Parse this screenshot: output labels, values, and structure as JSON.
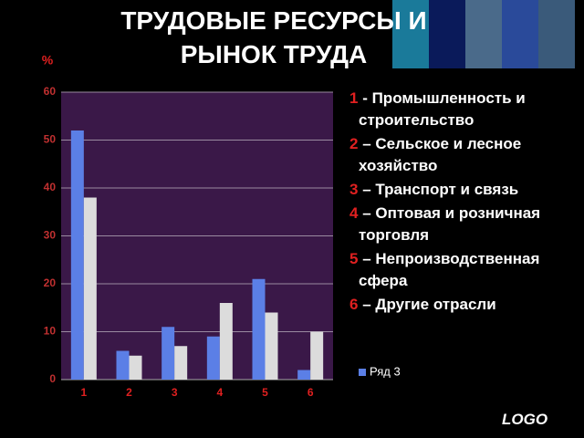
{
  "title": "ТРУДОВЫЕ РЕСУРСЫ И РЫНОК ТРУДА",
  "logo": "LOGO",
  "notes": [
    {
      "number": "1",
      "text": "- Промышленность и строительство"
    },
    {
      "number": "2",
      "text": "– Сельское и лесное хозяйство"
    },
    {
      "number": "3",
      "text": "– Транспорт и связь"
    },
    {
      "number": "4",
      "text": "– Оптовая и розничная торговля"
    },
    {
      "number": "5",
      "text": "– Непроизводственная сфера"
    },
    {
      "number": "6",
      "text": "– Другие отрасли"
    }
  ],
  "chart_data": {
    "type": "bar",
    "y_label": "%",
    "categories": [
      "1",
      "2",
      "3",
      "4",
      "5",
      "6"
    ],
    "series": [
      {
        "name": "Ряд 3",
        "color": "#5b7fe6",
        "values": [
          52,
          6,
          11,
          9,
          21,
          2
        ]
      },
      {
        "color": "#dcdcdc",
        "values": [
          38,
          5,
          7,
          16,
          14,
          10
        ]
      }
    ],
    "ylim": [
      0,
      60
    ],
    "yticks": [
      0,
      10,
      20,
      30,
      40,
      50,
      60
    ],
    "grid": true
  }
}
